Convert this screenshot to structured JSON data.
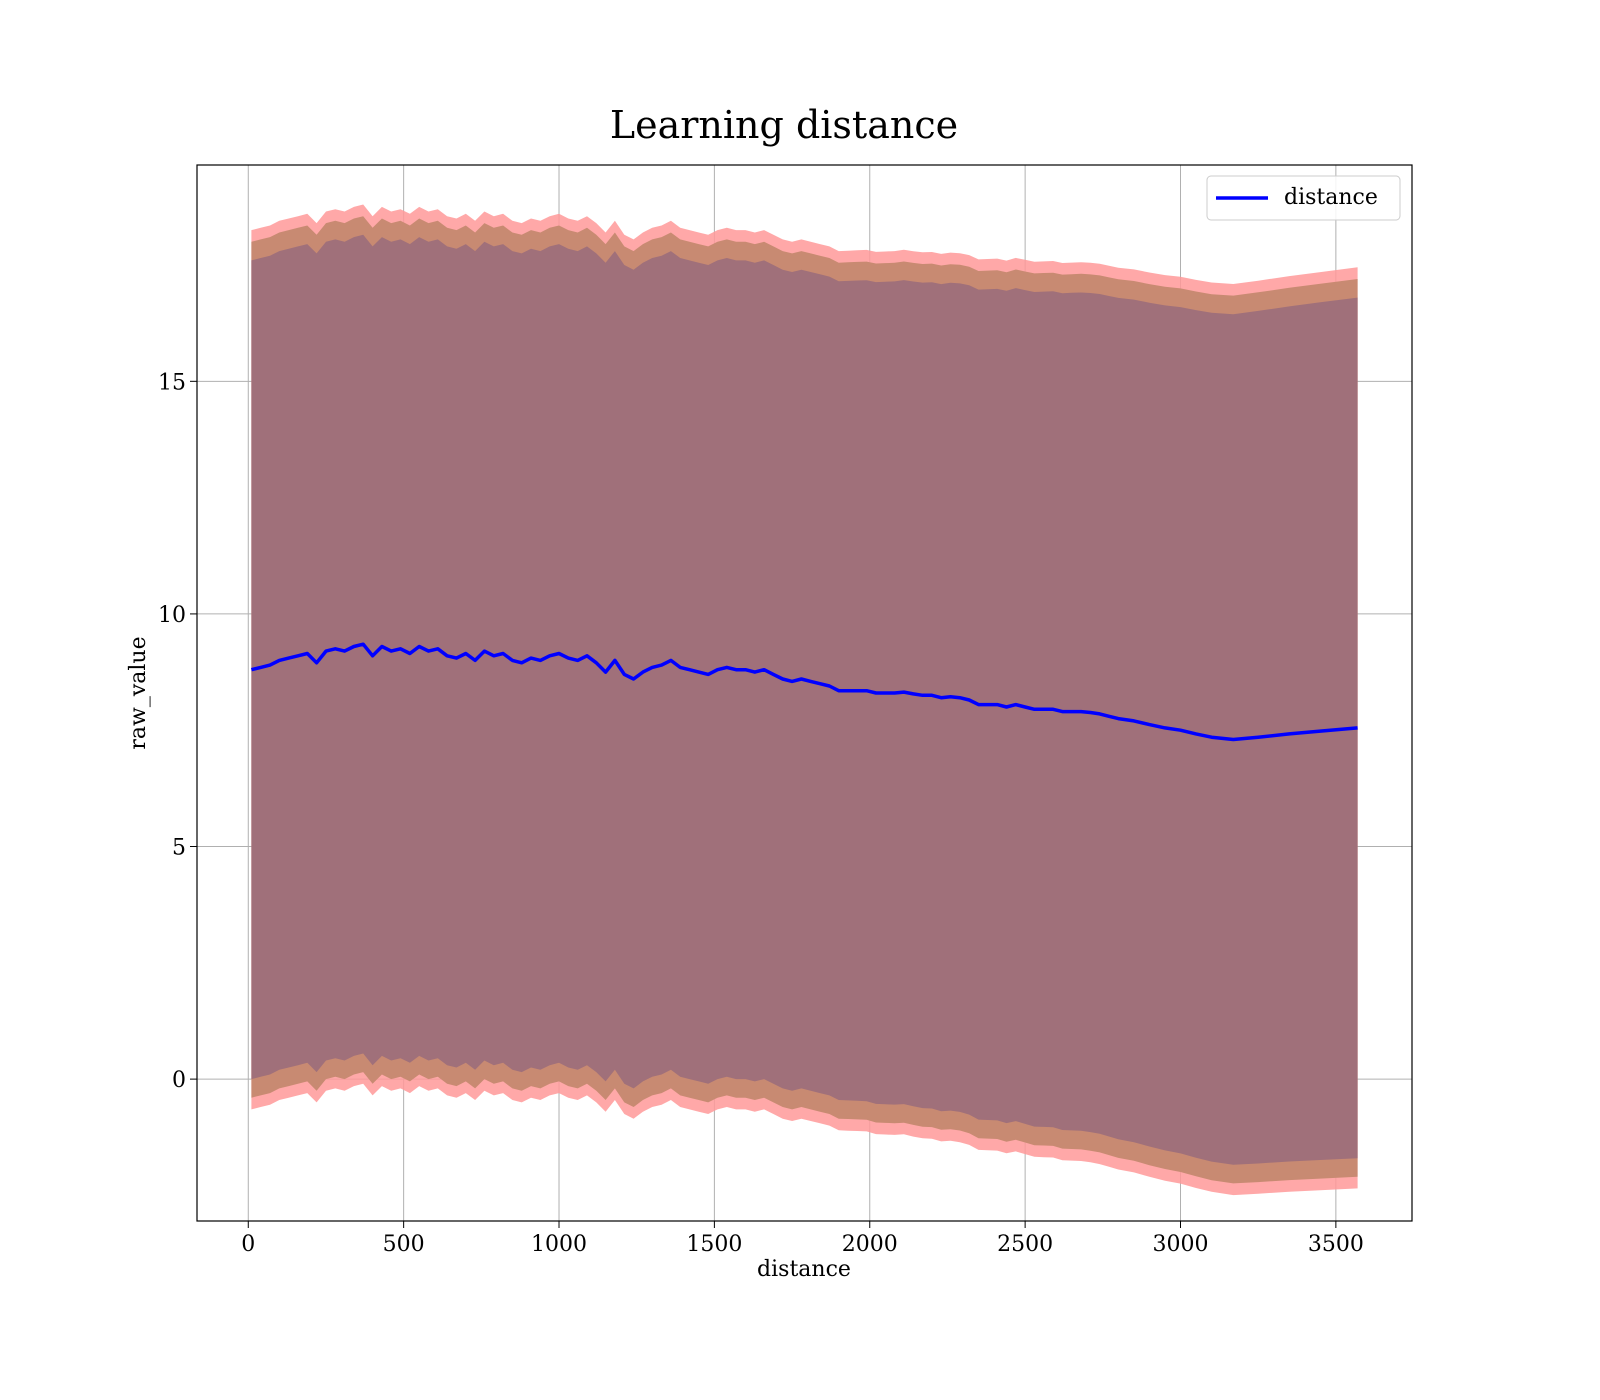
{
  "chart_data": {
    "type": "line",
    "title": "Learning distance",
    "xlabel": "distance",
    "ylabel": "raw_value",
    "xlim": [
      -165,
      3745
    ],
    "ylim": [
      -3.05,
      19.65
    ],
    "xticks": [
      0,
      500,
      1000,
      1500,
      2000,
      2500,
      3000,
      3500
    ],
    "yticks": [
      0,
      5,
      10,
      15
    ],
    "grid": true,
    "legend": {
      "placement": "top-right",
      "entries": [
        "distance"
      ]
    },
    "colors": {
      "line": "#0000ff",
      "band_outer": "#ff9999",
      "band_middle": "#c88a72",
      "band_inner": "#a0707a",
      "grid": "#b0b0b0"
    },
    "series": [
      {
        "name": "distance",
        "x": [
          10,
          40,
          70,
          100,
          130,
          160,
          190,
          220,
          250,
          280,
          310,
          340,
          370,
          400,
          430,
          460,
          490,
          520,
          550,
          580,
          610,
          640,
          670,
          700,
          730,
          760,
          790,
          820,
          850,
          880,
          910,
          940,
          970,
          1000,
          1030,
          1060,
          1090,
          1120,
          1150,
          1180,
          1210,
          1240,
          1270,
          1300,
          1330,
          1360,
          1390,
          1420,
          1450,
          1480,
          1510,
          1540,
          1570,
          1600,
          1630,
          1660,
          1690,
          1720,
          1750,
          1780,
          1810,
          1840,
          1870,
          1900,
          1930,
          1960,
          1990,
          2020,
          2050,
          2080,
          2110,
          2140,
          2170,
          2200,
          2230,
          2260,
          2290,
          2320,
          2350,
          2380,
          2410,
          2440,
          2470,
          2500,
          2530,
          2560,
          2590,
          2620,
          2650,
          2680,
          2710,
          2740,
          2770,
          2800,
          2850,
          2900,
          2950,
          3000,
          3050,
          3100,
          3170,
          3250,
          3350,
          3450,
          3570
        ],
        "y": [
          8.8,
          8.85,
          8.9,
          9.0,
          9.05,
          9.1,
          9.15,
          8.95,
          9.2,
          9.25,
          9.2,
          9.3,
          9.35,
          9.1,
          9.3,
          9.2,
          9.25,
          9.15,
          9.3,
          9.2,
          9.25,
          9.1,
          9.05,
          9.15,
          9.0,
          9.2,
          9.1,
          9.15,
          9.0,
          8.95,
          9.05,
          9.0,
          9.1,
          9.15,
          9.05,
          9.0,
          9.1,
          8.95,
          8.75,
          9.0,
          8.7,
          8.6,
          8.75,
          8.85,
          8.9,
          9.0,
          8.85,
          8.8,
          8.75,
          8.7,
          8.8,
          8.85,
          8.8,
          8.8,
          8.75,
          8.8,
          8.7,
          8.6,
          8.55,
          8.6,
          8.55,
          8.5,
          8.45,
          8.35,
          8.35,
          8.35,
          8.35,
          8.3,
          8.3,
          8.3,
          8.32,
          8.28,
          8.25,
          8.25,
          8.2,
          8.22,
          8.2,
          8.15,
          8.05,
          8.05,
          8.05,
          8.0,
          8.05,
          8.0,
          7.95,
          7.95,
          7.95,
          7.9,
          7.9,
          7.9,
          7.88,
          7.85,
          7.8,
          7.75,
          7.7,
          7.62,
          7.55,
          7.5,
          7.42,
          7.35,
          7.3,
          7.35,
          7.42,
          7.48,
          7.55
        ]
      }
    ]
  }
}
